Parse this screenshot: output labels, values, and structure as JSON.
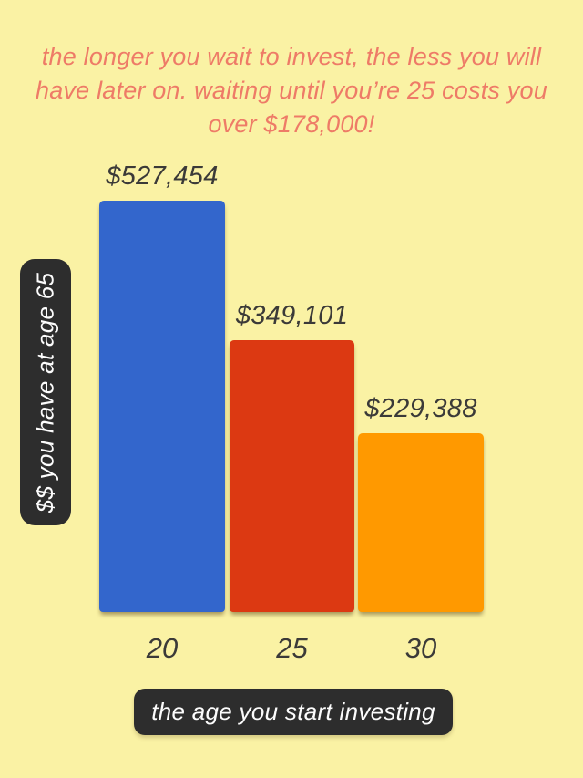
{
  "title_lines": [
    "the longer you wait to invest, the less you will",
    "have later on. waiting until you’re 25 costs you",
    "over $178,000!"
  ],
  "chart_data": {
    "type": "bar",
    "title": "the longer you wait to invest, the less you will have later on. waiting until you’re 25 costs you over $178,000!",
    "categories": [
      "20",
      "25",
      "30"
    ],
    "values": [
      527454,
      349101,
      229388
    ],
    "value_labels": [
      "$527,454",
      "$349,101",
      "$229,388"
    ],
    "colors": [
      "#3366CC",
      "#DC3912",
      "#FF9900"
    ],
    "xlabel": "the age you start investing",
    "ylabel": "$$ you have at age 65",
    "ylim": [
      0,
      527454
    ],
    "grid": false,
    "legend": false
  },
  "palette": {
    "background": "#FAF2A4",
    "title_text": "#EE7B67",
    "dark_text": "#3B3A38",
    "badge_background": "#2D2D2D",
    "badge_text": "#FCFCFC"
  }
}
